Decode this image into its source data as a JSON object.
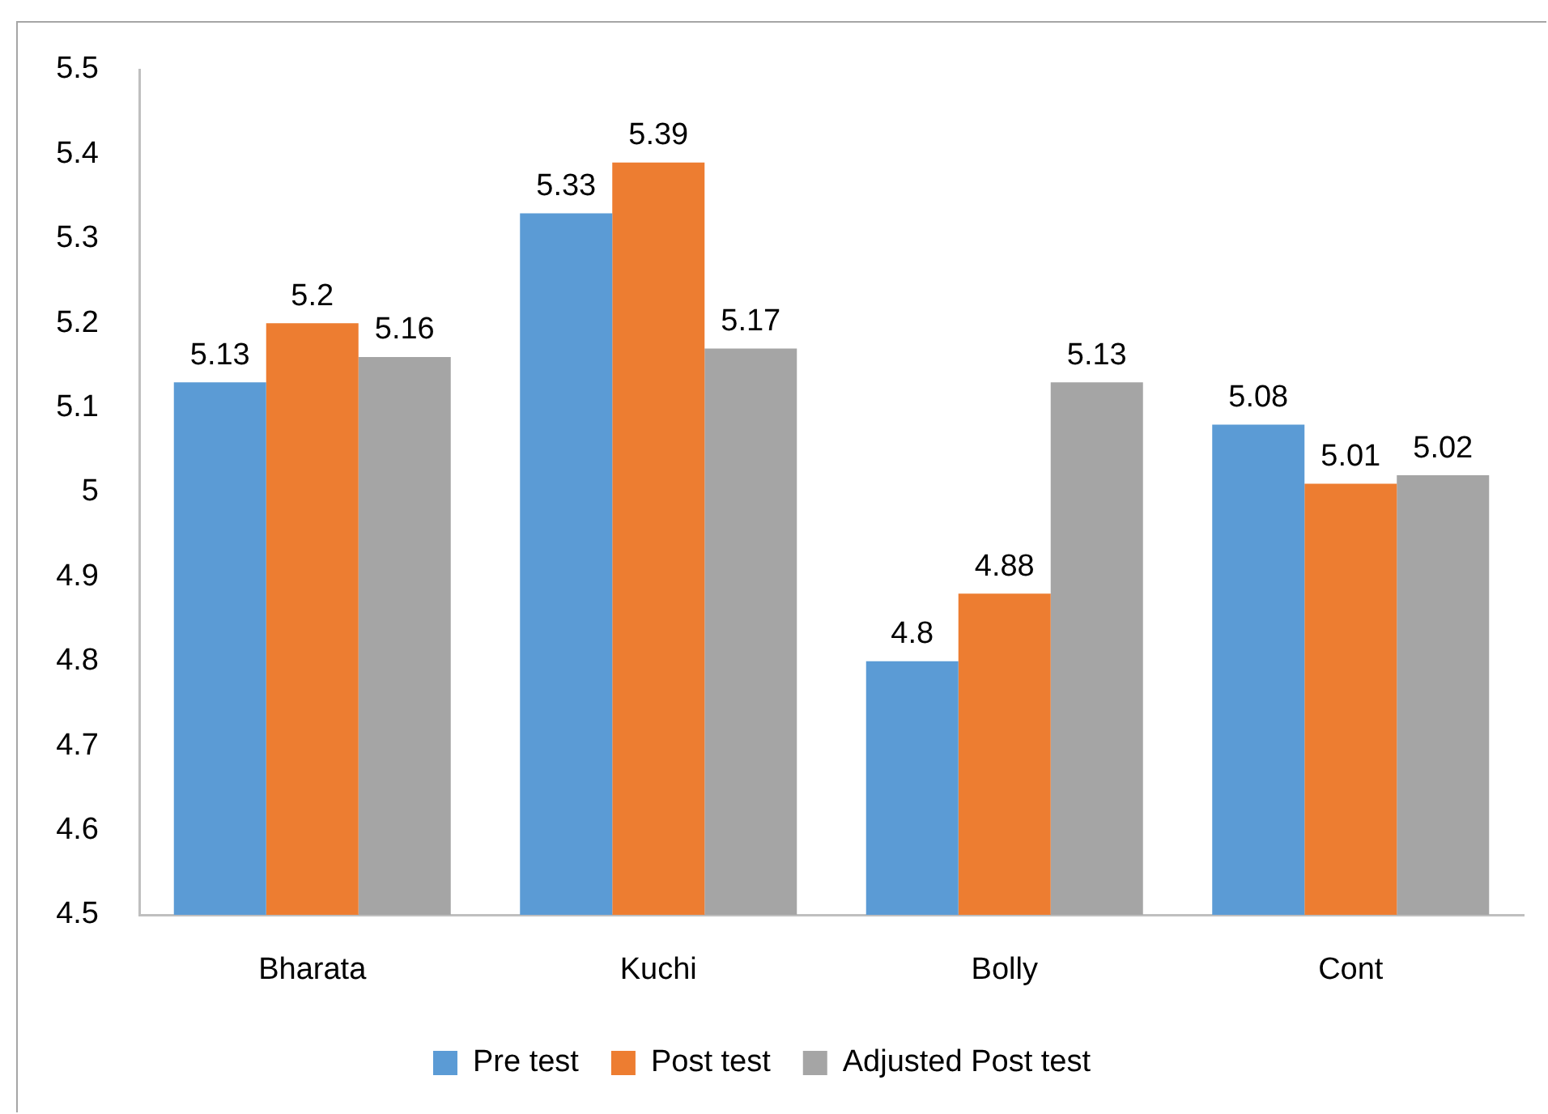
{
  "chart_data": {
    "type": "bar",
    "categories": [
      "Bharata",
      "Kuchi",
      "Bolly",
      "Cont"
    ],
    "series": [
      {
        "name": "Pre test",
        "color": "#5b9bd5",
        "values": [
          5.13,
          5.33,
          4.8,
          5.08
        ]
      },
      {
        "name": "Post test",
        "color": "#ed7d31",
        "values": [
          5.2,
          5.39,
          4.88,
          5.01
        ]
      },
      {
        "name": "Adjusted Post test",
        "color": "#a5a5a5",
        "values": [
          5.16,
          5.17,
          5.13,
          5.02
        ]
      }
    ],
    "ylim": [
      4.5,
      5.5
    ],
    "yticks": [
      4.5,
      4.6,
      4.7,
      4.8,
      4.9,
      5,
      5.1,
      5.2,
      5.3,
      5.4,
      5.5
    ],
    "grid": false,
    "legend": "bottom",
    "data_labels": true
  }
}
